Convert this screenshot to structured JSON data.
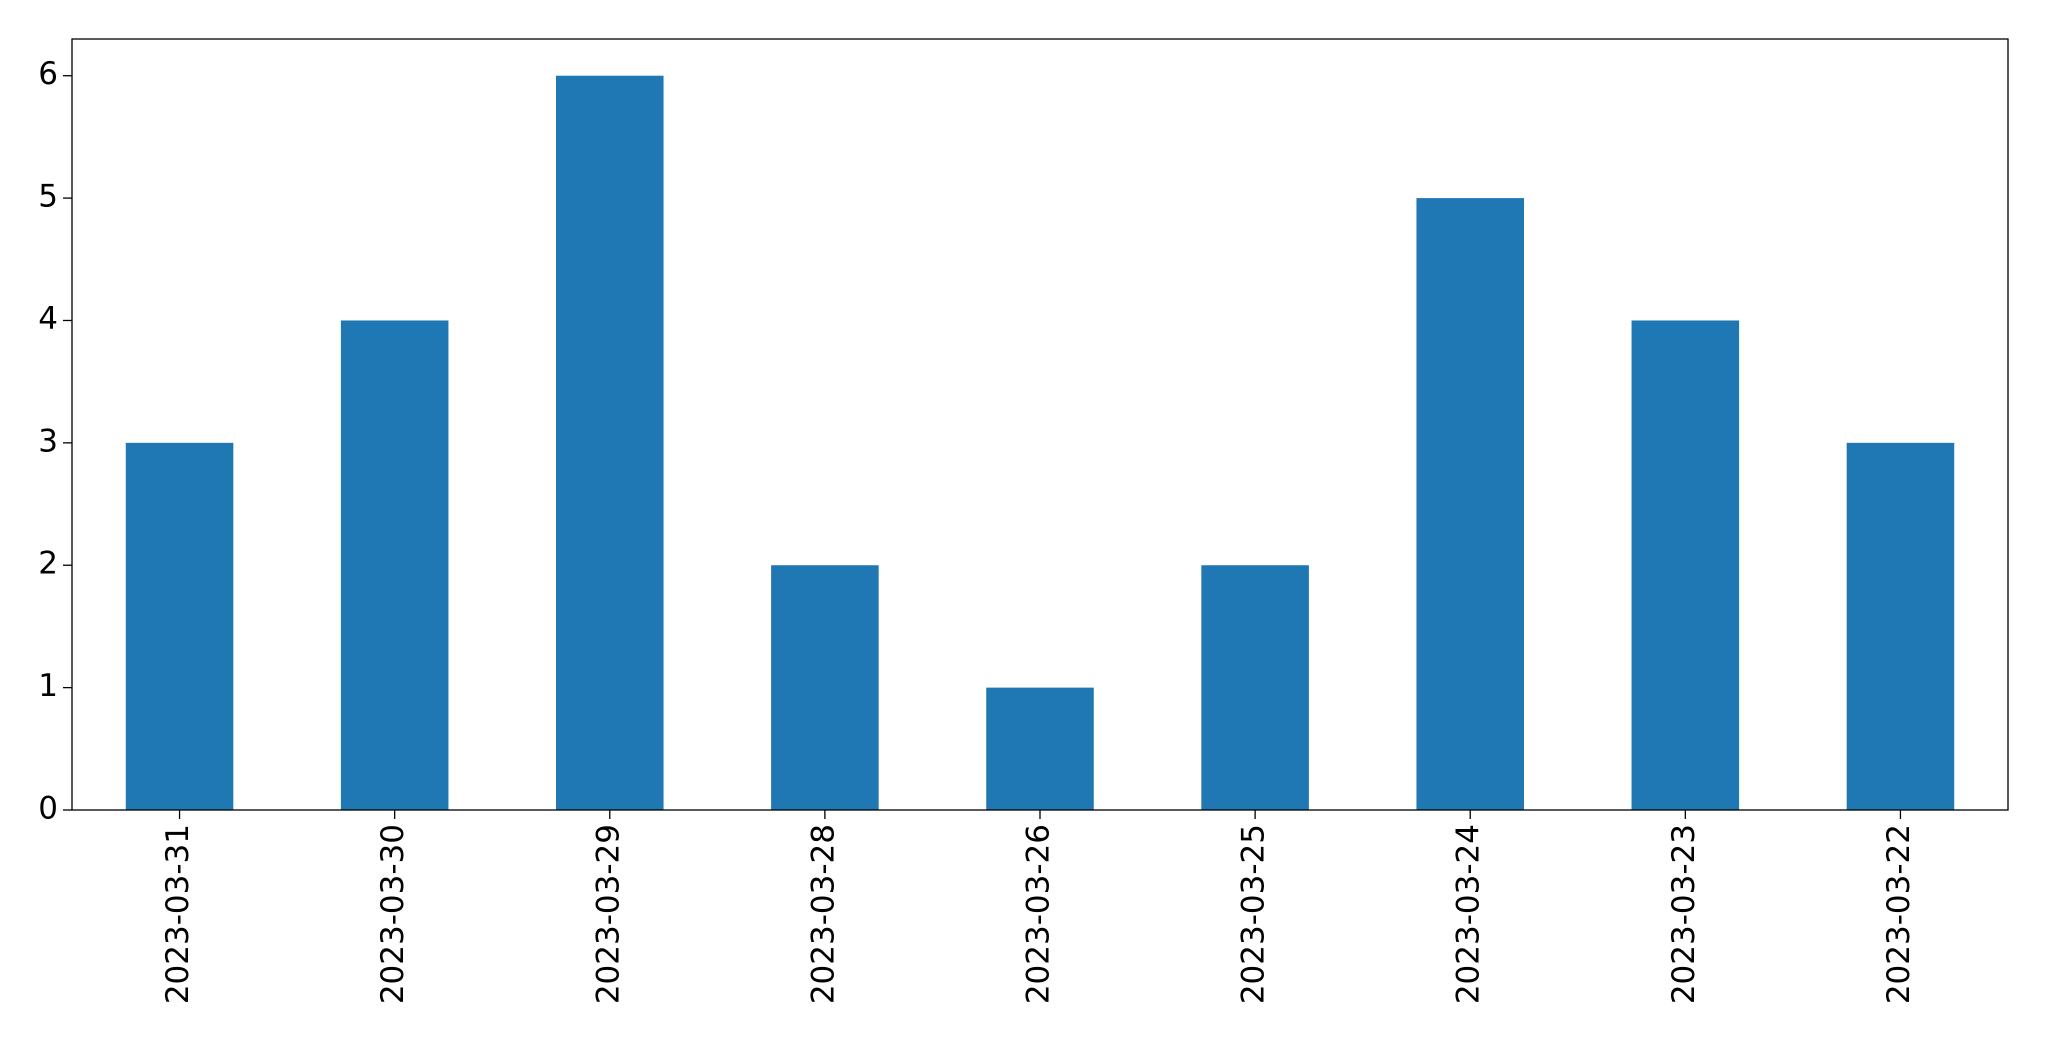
{
  "chart_data": {
    "type": "bar",
    "categories": [
      "2023-03-31",
      "2023-03-30",
      "2023-03-29",
      "2023-03-28",
      "2023-03-26",
      "2023-03-25",
      "2023-03-24",
      "2023-03-23",
      "2023-03-22"
    ],
    "values": [
      3,
      4,
      6,
      2,
      1,
      2,
      5,
      4,
      3
    ],
    "color": "#1f77b4",
    "ylim": [
      0,
      6.3
    ],
    "yticks": [
      0,
      1,
      2,
      3,
      4,
      5,
      6
    ],
    "grid": false
  }
}
